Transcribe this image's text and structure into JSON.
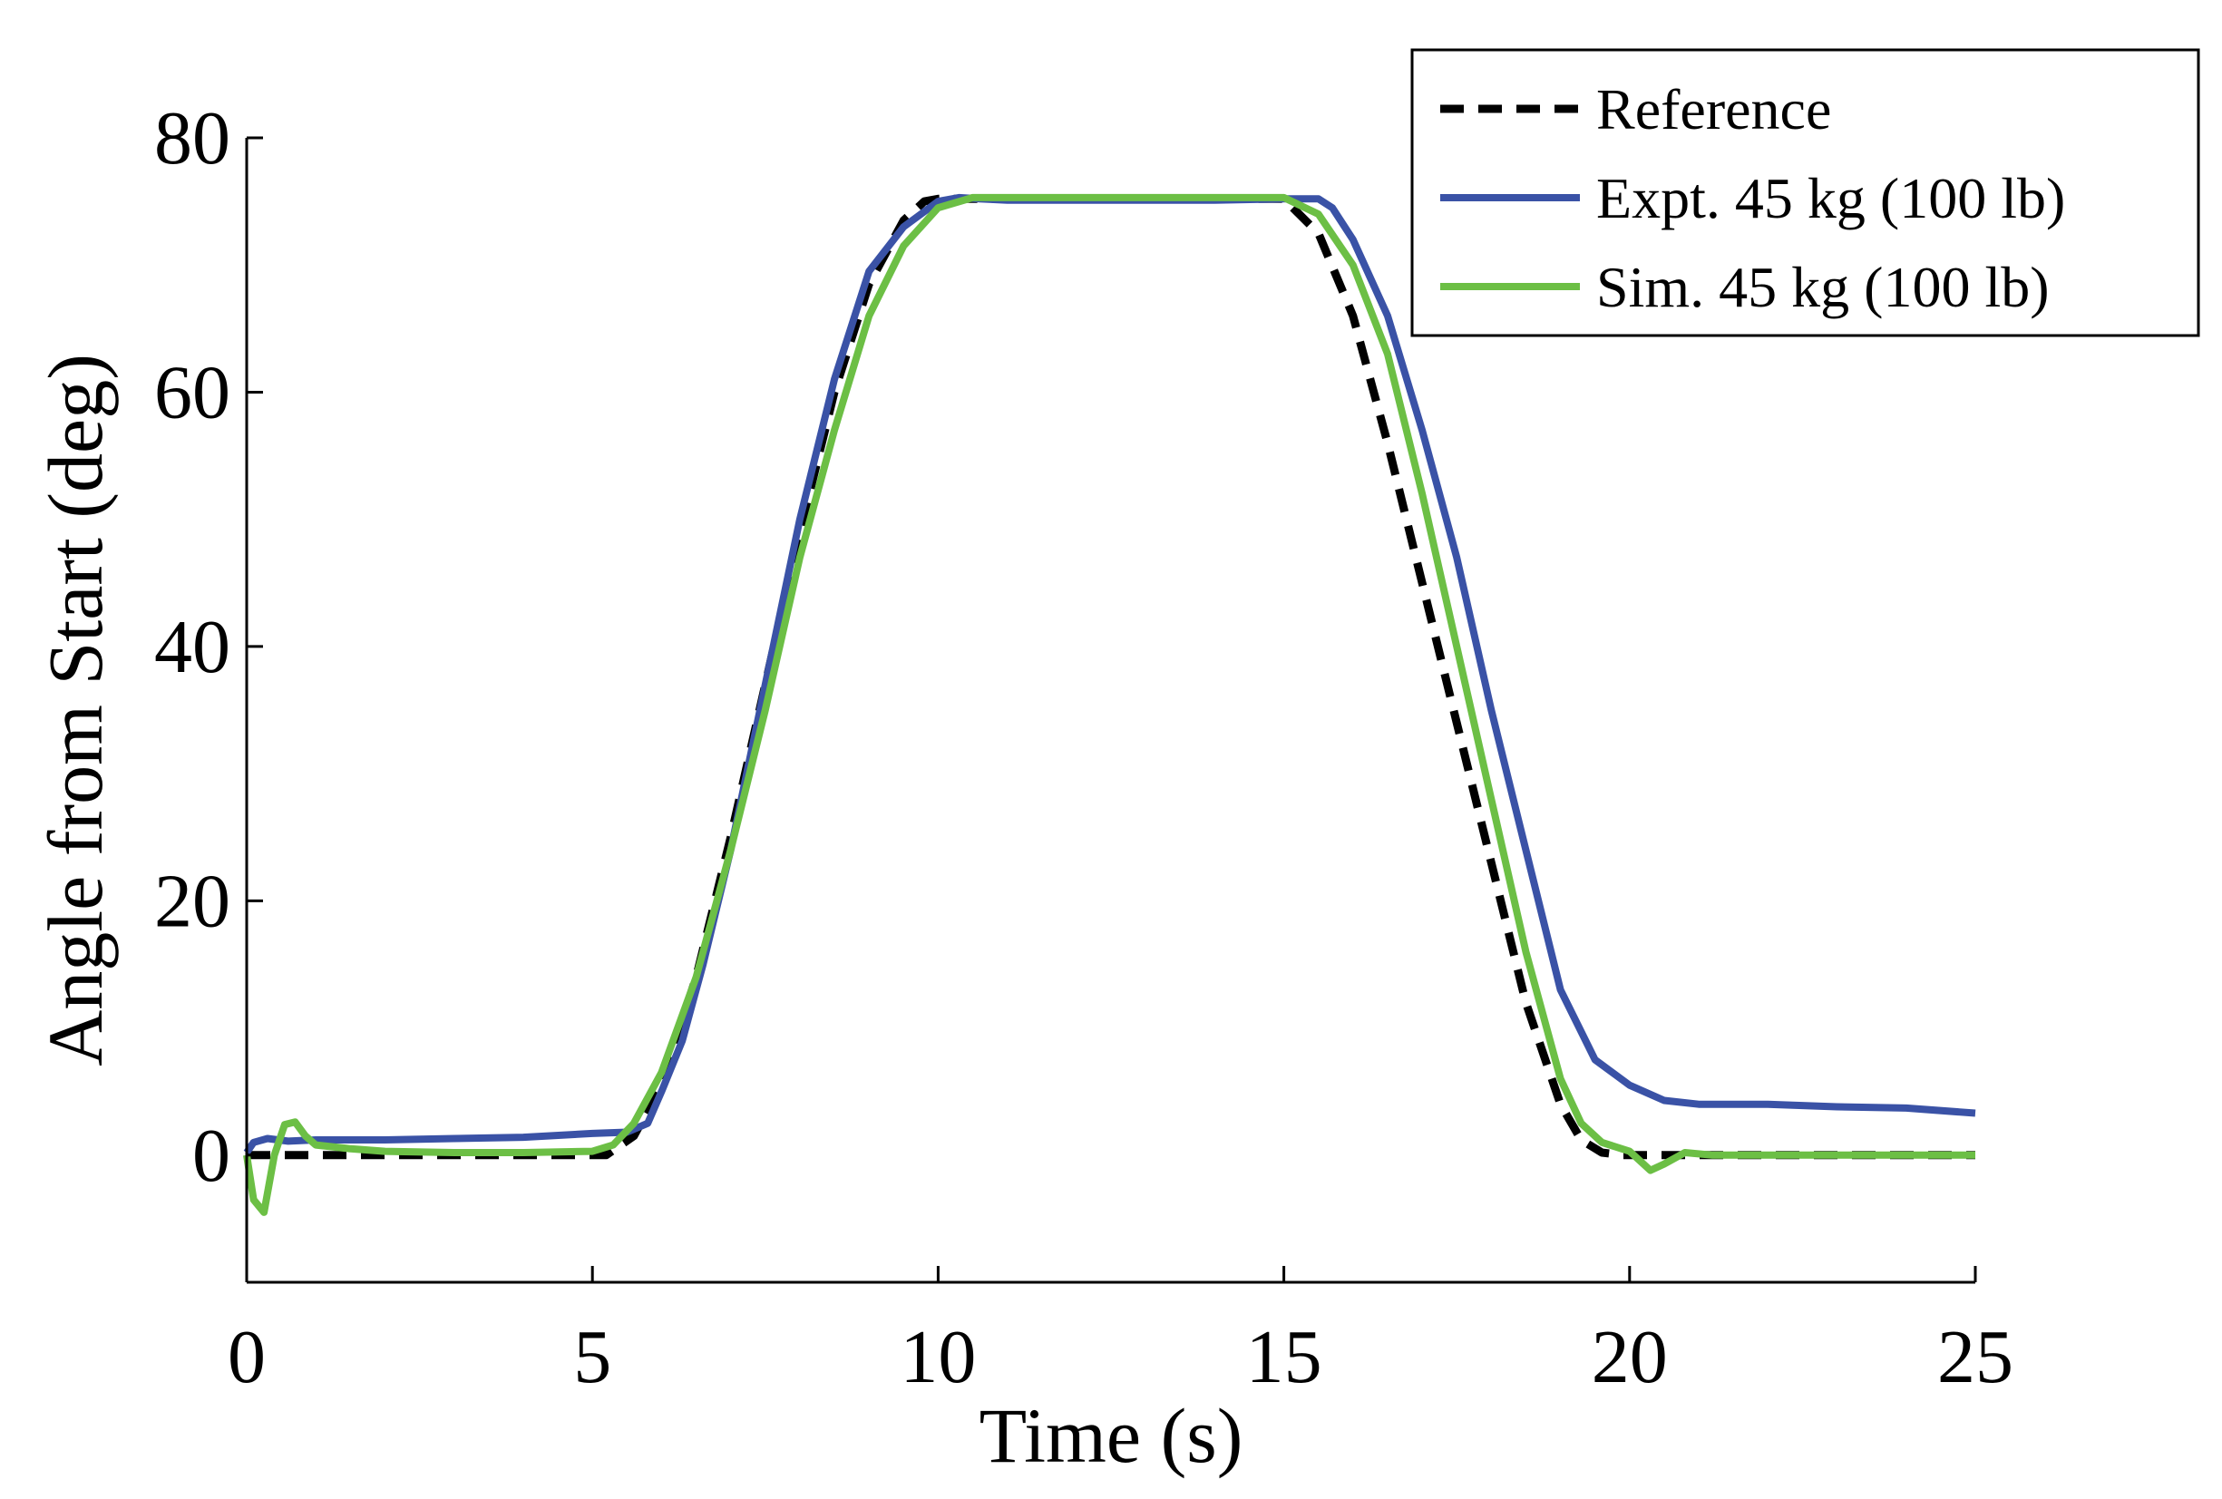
{
  "chart_data": {
    "type": "line",
    "title": "",
    "xlabel": "Time (s)",
    "ylabel": "Angle from Start (deg)",
    "xlim": [
      0,
      25
    ],
    "ylim": [
      -10,
      80
    ],
    "xticks": [
      0,
      5,
      10,
      15,
      20,
      25
    ],
    "yticks": [
      0,
      20,
      40,
      60,
      80
    ],
    "xtick_labels": [
      "0",
      "5",
      "10",
      "15",
      "20",
      "25"
    ],
    "ytick_labels": [
      "0",
      "20",
      "40",
      "60",
      "80"
    ],
    "grid": false,
    "legend": {
      "position": "top-right"
    },
    "series": [
      {
        "name": "Reference",
        "color": "#000000",
        "style": "dashed",
        "x": [
          0,
          5.2,
          5.6,
          6.0,
          6.5,
          7.0,
          7.5,
          8.0,
          8.5,
          9.0,
          9.5,
          9.8,
          10.0,
          10.3,
          15.0,
          15.5,
          16.0,
          16.5,
          17.0,
          17.5,
          18.0,
          18.5,
          19.0,
          19.3,
          19.6,
          19.9,
          20.2,
          25
        ],
        "values": [
          0,
          0,
          1.5,
          5.5,
          14,
          25,
          37,
          49,
          60,
          68.5,
          73.5,
          75,
          75.2,
          75.2,
          75.2,
          72.5,
          66,
          56,
          45,
          34,
          23,
          12,
          4,
          1.2,
          0.2,
          0,
          0,
          0
        ]
      },
      {
        "name": "Expt. 45 kg (100 lb)",
        "color": "#3a52a6",
        "style": "solid",
        "x": [
          0,
          0.1,
          0.3,
          0.6,
          1,
          2,
          3,
          4,
          5,
          5.5,
          5.8,
          6.0,
          6.3,
          6.6,
          7.0,
          7.5,
          8.0,
          8.5,
          9.0,
          9.5,
          10.0,
          10.3,
          10.6,
          11.0,
          12,
          13,
          14,
          15,
          15.5,
          15.7,
          16.0,
          16.5,
          17.0,
          17.5,
          18.0,
          18.5,
          19.0,
          19.5,
          20.0,
          20.5,
          21.0,
          22,
          23,
          24,
          25
        ],
        "values": [
          0.2,
          1.0,
          1.3,
          1.1,
          1.2,
          1.2,
          1.3,
          1.4,
          1.7,
          1.8,
          2.5,
          5,
          9,
          15,
          24,
          37,
          50,
          61,
          69.5,
          73,
          75,
          75.3,
          75.2,
          75.1,
          75.1,
          75.1,
          75.1,
          75.2,
          75.2,
          74.5,
          72,
          66,
          57,
          47,
          35,
          24,
          13,
          7.5,
          5.5,
          4.3,
          4.0,
          4.0,
          3.8,
          3.7,
          3.3
        ]
      },
      {
        "name": "Sim. 45 kg (100 lb)",
        "color": "#6cbf45",
        "style": "solid",
        "x": [
          0,
          0.1,
          0.25,
          0.4,
          0.55,
          0.7,
          0.85,
          1.0,
          1.5,
          2,
          3,
          4,
          5,
          5.3,
          5.6,
          6.0,
          6.5,
          7.0,
          7.5,
          8.0,
          8.5,
          9.0,
          9.5,
          10.0,
          10.5,
          11.0,
          12,
          13,
          14,
          15,
          15.5,
          16.0,
          16.5,
          17.0,
          17.5,
          18.0,
          18.5,
          19.0,
          19.3,
          19.6,
          20.0,
          20.3,
          20.5,
          20.8,
          21.2,
          22,
          23,
          24,
          25
        ],
        "values": [
          0,
          -3.5,
          -4.5,
          0,
          2.4,
          2.6,
          1.5,
          0.8,
          0.5,
          0.3,
          0.2,
          0.2,
          0.3,
          0.8,
          2.5,
          6.5,
          14,
          24,
          35,
          47,
          57,
          66,
          71.5,
          74.5,
          75.3,
          75.3,
          75.3,
          75.3,
          75.3,
          75.3,
          74,
          70,
          63,
          52,
          40,
          28,
          16,
          6,
          2.5,
          1.0,
          0.3,
          -1.2,
          -0.7,
          0.2,
          0,
          0,
          0,
          0,
          0
        ]
      }
    ]
  }
}
